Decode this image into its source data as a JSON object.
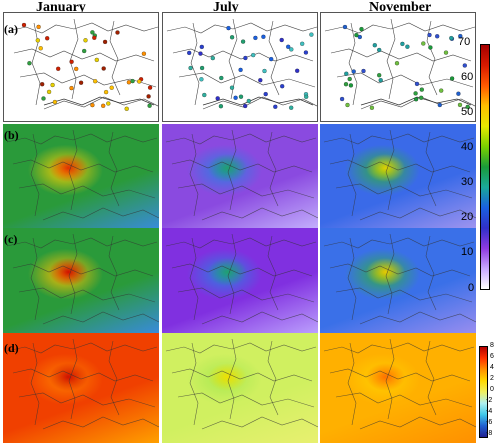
{
  "column_titles": [
    "January",
    "July",
    "November"
  ],
  "row_labels": [
    "(a)",
    "(b)",
    "(c)",
    "(d)"
  ],
  "colorbar_main": {
    "ticks": [
      "70",
      "60",
      "50",
      "40",
      "30",
      "20",
      "10",
      "0"
    ],
    "colors": [
      "#a50000",
      "#d81a00",
      "#ff5a00",
      "#ffc000",
      "#e8e800",
      "#7ad000",
      "#1a9a3a",
      "#1aa89a",
      "#1a60e0",
      "#3030c8",
      "#8e3ae0",
      "#c8a8ff",
      "#ffffff"
    ]
  },
  "colorbar_diff": {
    "ticks": [
      "8",
      "6",
      "4",
      "2",
      "0",
      "-2",
      "-4",
      "-6",
      "-8"
    ],
    "colors": [
      "#b40000",
      "#ff3000",
      "#ff9000",
      "#ffd800",
      "#f0f060",
      "#b0f0f0",
      "#40c8e8",
      "#2060d0",
      "#202090"
    ]
  },
  "panels": {
    "b": [
      {
        "base": "#2a9a3a",
        "accent": "#ffd000",
        "hot": "#e03000",
        "sea": "#3a8ae8"
      },
      {
        "base": "#8a4ae0",
        "accent": "#2a80e0",
        "hot": "#20a070",
        "sea": "#c8b8ff"
      },
      {
        "base": "#3a6ae8",
        "accent": "#30b040",
        "hot": "#e0d000",
        "sea": "#a898f0"
      }
    ],
    "c": [
      {
        "base": "#2a9a3a",
        "accent": "#ffc000",
        "hot": "#d01000",
        "sea": "#3a8ae8"
      },
      {
        "base": "#8030e0",
        "accent": "#2a80e0",
        "hot": "#20a070",
        "sea": "#c0a8ff"
      },
      {
        "base": "#3a70e8",
        "accent": "#30b040",
        "hot": "#e8c800",
        "sea": "#a090f0"
      }
    ],
    "d": [
      {
        "base": "#f04000",
        "accent": "#ff8000",
        "hot": "#d01000",
        "sea": "#ffa000"
      },
      {
        "base": "#d0f060",
        "accent": "#a8e850",
        "hot": "#f0e000",
        "sea": "#e8f070"
      },
      {
        "base": "#ffb000",
        "accent": "#ffd000",
        "hot": "#ff7000",
        "sea": "#ff9000"
      }
    ]
  }
}
